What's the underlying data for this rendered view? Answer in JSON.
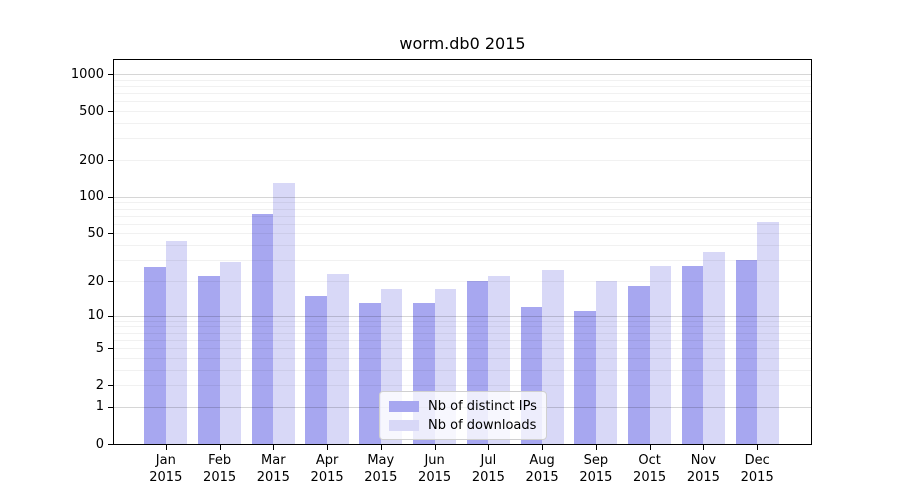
{
  "chart_data": {
    "type": "bar",
    "title": "worm.db0 2015",
    "categories": [
      "Jan",
      "Feb",
      "Mar",
      "Apr",
      "May",
      "Jun",
      "Jul",
      "Aug",
      "Sep",
      "Oct",
      "Nov",
      "Dec"
    ],
    "x_year_label": "2015",
    "series": [
      {
        "name": "Nb of distinct IPs",
        "color": "#a7a7f0",
        "values": [
          26,
          22,
          72,
          15,
          13,
          13,
          20,
          12,
          11,
          18,
          27,
          30
        ]
      },
      {
        "name": "Nb of downloads",
        "color": "#d8d8f7",
        "values": [
          43,
          29,
          130,
          23,
          17,
          17,
          22,
          25,
          20,
          27,
          35,
          62
        ]
      }
    ],
    "y_ticks": [
      0,
      1,
      2,
      5,
      10,
      20,
      50,
      100,
      200,
      500,
      1000
    ],
    "y_scale": "log(value+1)",
    "ylim": [
      0,
      1300
    ],
    "xlabel": "",
    "ylabel": "",
    "grid": true,
    "legend_position": "lower center"
  }
}
